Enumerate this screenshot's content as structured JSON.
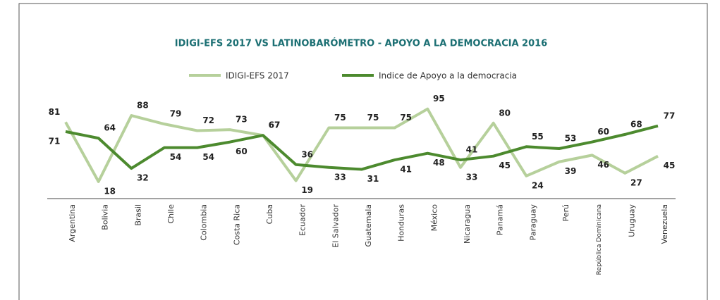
{
  "chart_data": {
    "type": "line",
    "title": "IDIGI-EFS 2017 VS LATINOBARÓMETRO - APOYO A LA DEMOCRACIA 2016",
    "categories": [
      "Argentina",
      "Bolivia",
      "Brasil",
      "Chile",
      "Colombia",
      "Costa Rica",
      "Cuba",
      "Ecuador",
      "El Salvador",
      "Guatemala",
      "Honduras",
      "México",
      "Nicaragua",
      "Panamá",
      "Paraguay",
      "Perú",
      "República Dominicana",
      "Uruguay",
      "Venezuela"
    ],
    "series": [
      {
        "name": "IDIGI-EFS 2017",
        "color": "#b6d09b",
        "values": [
          81,
          18,
          88,
          79,
          72,
          73,
          67,
          19,
          75,
          75,
          75,
          95,
          33,
          80,
          24,
          39,
          46,
          27,
          45
        ]
      },
      {
        "name": "Indice de Apoyo a la democracia",
        "color": "#4c8a2e",
        "values": [
          71,
          64,
          32,
          54,
          54,
          60,
          67,
          36,
          33,
          31,
          41,
          48,
          41,
          45,
          55,
          53,
          60,
          68,
          77
        ]
      }
    ],
    "ylim": [
      0,
      100
    ]
  }
}
